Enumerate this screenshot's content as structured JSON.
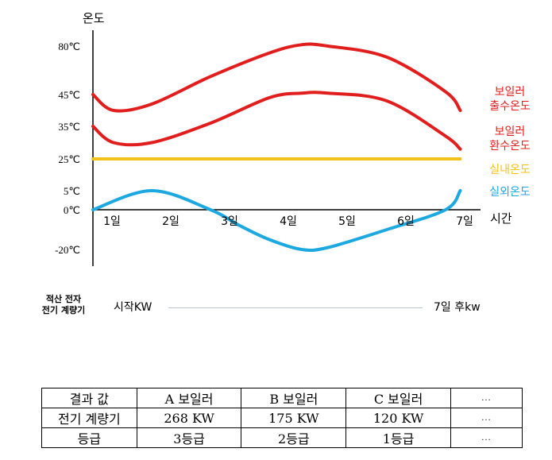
{
  "chart_data": {
    "type": "line",
    "title": "",
    "ylabel": "온도",
    "xlabel": "시간",
    "x_ticks": [
      "1일",
      "2일",
      "3일",
      "4일",
      "5일",
      "6일",
      "7일"
    ],
    "y_ticks": [
      "80℃",
      "45℃",
      "35℃",
      "25℃",
      "5℃",
      "0℃",
      "-20℃"
    ],
    "series": [
      {
        "name": "보일러\n출수온도",
        "color": "#e01e1e",
        "x": [
          0.0,
          0.35,
          1.0,
          2.0,
          3.0,
          3.55,
          4.0,
          5.0,
          6.0,
          6.25
        ],
        "y": [
          45,
          40,
          42,
          58,
          75,
          81,
          80,
          72,
          47,
          40
        ]
      },
      {
        "name": "보일러\n환수온도",
        "color": "#e01e1e",
        "x": [
          0.0,
          0.35,
          1.0,
          2.0,
          3.0,
          3.55,
          4.0,
          5.0,
          6.0,
          6.25
        ],
        "y": [
          35,
          30,
          30,
          36,
          44,
          46,
          46,
          43,
          32,
          28
        ]
      },
      {
        "name": "실내온도",
        "color": "#f2c21b",
        "x": [
          0.0,
          6.25
        ],
        "y": [
          25,
          25
        ]
      },
      {
        "name": "실외온도",
        "color": "#1ea8e0",
        "x": [
          0.0,
          1.0,
          2.0,
          2.5,
          3.0,
          3.55,
          4.0,
          5.0,
          6.0,
          6.25
        ],
        "y": [
          0,
          5,
          0,
          -8,
          -15,
          -20,
          -19,
          -10,
          0,
          5
        ]
      }
    ]
  },
  "meter": {
    "label_line1": "적산 전자",
    "label_line2": "전기 계량기",
    "start": "시작KW",
    "end": "7일 후kw"
  },
  "table": {
    "rows": [
      [
        "결과 값",
        "A 보일러",
        "B 보일러",
        "C 보일러",
        "..."
      ],
      [
        "전기 계량기",
        "268 KW",
        "175 KW",
        "120 KW",
        "..."
      ],
      [
        "등급",
        "3등급",
        "2등급",
        "1등급",
        "..."
      ]
    ]
  }
}
